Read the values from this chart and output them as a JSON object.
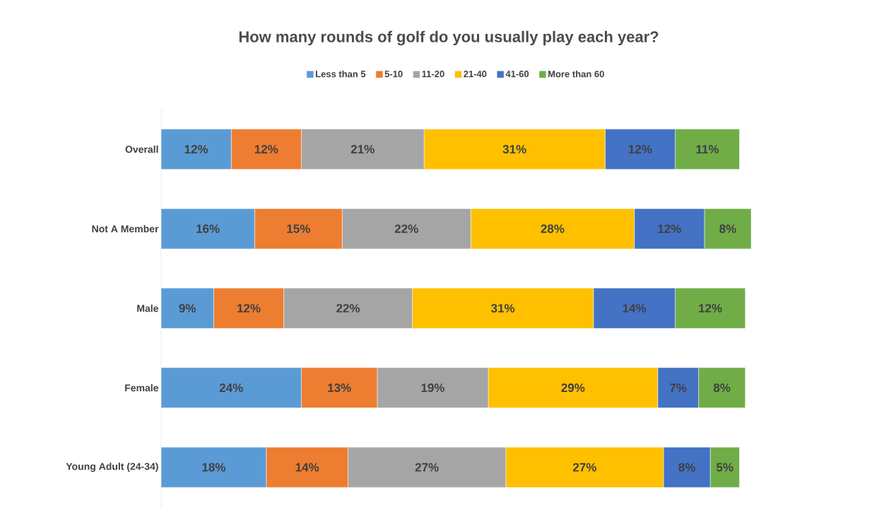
{
  "chart_data": {
    "type": "bar",
    "orientation": "horizontal",
    "stacked": true,
    "title": "How many rounds of golf do you usually play each year?",
    "categories": [
      "Overall",
      "Not A Member",
      "Male",
      "Female",
      "Young Adult (24-34)"
    ],
    "legend": "top",
    "series": [
      {
        "name": "Less than 5",
        "color": "#5b9bd5",
        "values": [
          12,
          16,
          9,
          24,
          18
        ],
        "value_labels": [
          "12%",
          "16%",
          "9%",
          "24%",
          "18%"
        ]
      },
      {
        "name": "5-10",
        "color": "#ed7d31",
        "values": [
          12,
          15,
          12,
          13,
          14
        ],
        "value_labels": [
          "12%",
          "15%",
          "12%",
          "13%",
          "14%"
        ]
      },
      {
        "name": "11-20",
        "color": "#a5a5a5",
        "values": [
          21,
          22,
          22,
          19,
          27
        ],
        "value_labels": [
          "21%",
          "22%",
          "22%",
          "19%",
          "27%"
        ]
      },
      {
        "name": "21-40",
        "color": "#ffc000",
        "values": [
          31,
          28,
          31,
          29,
          27
        ],
        "value_labels": [
          "31%",
          "28%",
          "31%",
          "29%",
          "27%"
        ]
      },
      {
        "name": "41-60",
        "color": "#4472c4",
        "values": [
          12,
          12,
          14,
          7,
          8
        ],
        "value_labels": [
          "12%",
          "12%",
          "14%",
          "7%",
          "8%"
        ]
      },
      {
        "name": "More than 60",
        "color": "#70ad47",
        "values": [
          11,
          8,
          12,
          8,
          5
        ],
        "value_labels": [
          "11%",
          "8%",
          "12%",
          "8%",
          "5%"
        ]
      }
    ]
  }
}
